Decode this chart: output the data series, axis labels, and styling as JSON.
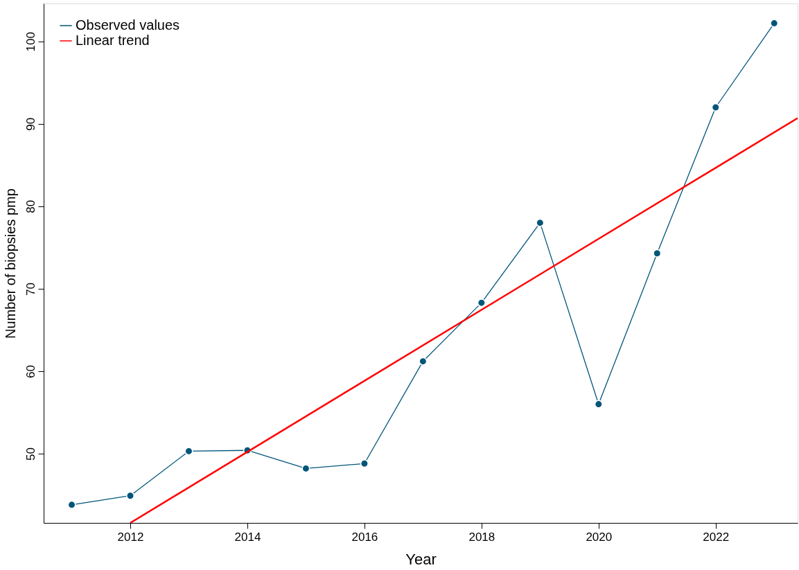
{
  "chart_data": {
    "type": "line",
    "xlabel": "Year",
    "ylabel": "Number of biopsies pmp",
    "xlim": [
      2010.52,
      2023.4
    ],
    "ylim": [
      41.6,
      104.6
    ],
    "xticks": [
      2012,
      2014,
      2016,
      2018,
      2020,
      2022
    ],
    "yticks": [
      50,
      60,
      70,
      80,
      90,
      100
    ],
    "grid": false,
    "legend": "top left",
    "series": [
      {
        "name": "Observed values",
        "marker": "circle",
        "color": "#00557a",
        "x": [
          2011,
          2012,
          2013,
          2014,
          2015,
          2016,
          2017,
          2018,
          2019,
          2020,
          2021,
          2022,
          2023
        ],
        "values": [
          43.8,
          44.9,
          50.3,
          50.4,
          48.2,
          48.8,
          61.2,
          68.3,
          78.0,
          56.0,
          74.3,
          92.0,
          102.2
        ]
      },
      {
        "name": "Linear trend",
        "marker": "none",
        "color": "#ff0000",
        "x": [
          2012,
          2023.4
        ],
        "values": [
          41.6,
          90.7
        ]
      }
    ]
  }
}
